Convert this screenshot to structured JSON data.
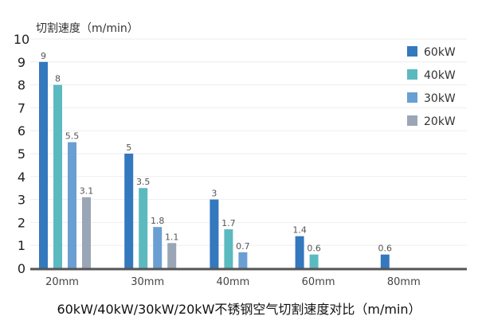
{
  "chart_data": {
    "type": "bar",
    "title": "60kW/40kW/30kW/20kW不锈钢空气切割速度对比（m/min）",
    "ylabel": "切割速度（m/min）",
    "xlabel": "",
    "ylim": [
      0,
      10
    ],
    "yticks": [
      "0",
      "1",
      "2",
      "3",
      "4",
      "5",
      "6",
      "7",
      "8",
      "9",
      "10"
    ],
    "grid": true,
    "legend_position": "top-right",
    "categories": [
      "20mm",
      "30mm",
      "40mm",
      "60mm",
      "80mm"
    ],
    "series": [
      {
        "name": "60kW",
        "color": "#3478be",
        "values": [
          9,
          5,
          3,
          1.4,
          0.6
        ]
      },
      {
        "name": "40kW",
        "color": "#5bbac0",
        "values": [
          8,
          3.5,
          1.7,
          0.6,
          null
        ]
      },
      {
        "name": "30kW",
        "color": "#6a9fd3",
        "values": [
          5.5,
          1.8,
          0.7,
          null,
          null
        ]
      },
      {
        "name": "20kW",
        "color": "#9aa6b5",
        "values": [
          3.1,
          1.1,
          null,
          null,
          null
        ]
      }
    ]
  }
}
